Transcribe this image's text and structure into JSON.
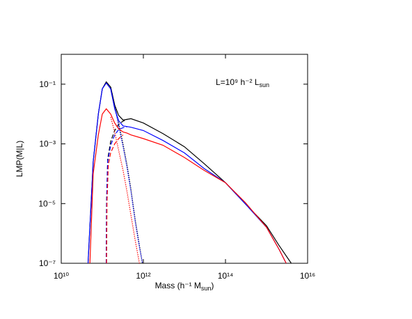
{
  "chart_data": {
    "type": "line",
    "x_label": [
      "Mass (h⁻¹ M",
      "sun",
      ")"
    ],
    "y_label": "LMP(M|L)",
    "annotation": [
      "L=10⁹ h⁻² L",
      "sun"
    ],
    "xscale": "log",
    "yscale": "log",
    "xlim": [
      10000000000.0,
      1e+16
    ],
    "ylim": [
      1e-07,
      1
    ],
    "xticks": [
      {
        "value": 10000000000.0,
        "label": "10¹⁰"
      },
      {
        "value": 1000000000000.0,
        "label": "10¹²"
      },
      {
        "value": 100000000000000.0,
        "label": "10¹⁴"
      },
      {
        "value": 1e+16,
        "label": "10¹⁶"
      }
    ],
    "yticks": [
      {
        "value": 0.1,
        "label": "10⁻¹"
      },
      {
        "value": 0.001,
        "label": "10⁻³"
      },
      {
        "value": 1e-05,
        "label": "10⁻⁵"
      },
      {
        "value": 1e-07,
        "label": "10⁻⁷"
      }
    ],
    "series": [
      {
        "color": "#000000",
        "dash": "solid",
        "x": [
          45000000000.0,
          60000000000.0,
          80000000000.0,
          100000000000.0,
          125000000000.0,
          160000000000.0,
          200000000000.0,
          250000000000.0,
          320000000000.0,
          400000000000.0,
          500000000000.0,
          1000000000000.0,
          3000000000000.0,
          10000000000000.0,
          30000000000000.0,
          100000000000000.0,
          300000000000000.0,
          1000000000000000.0,
          2000000000000000.0,
          4000000000000000.0
        ],
        "values": [
          1e-07,
          0.00025,
          0.01,
          0.07,
          0.12,
          0.08,
          0.02,
          0.009,
          0.0063,
          0.0066,
          0.007,
          0.005,
          0.0022,
          0.0008,
          0.00022,
          5e-05,
          1e-05,
          1.8e-06,
          4e-07,
          1e-07
        ]
      },
      {
        "color": "#000000",
        "dash": "dotted",
        "x": [
          160000000000.0,
          200000000000.0,
          250000000000.0,
          320000000000.0,
          400000000000.0,
          500000000000.0,
          630000000000.0,
          800000000000.0,
          950000000000.0
        ],
        "values": [
          0.08,
          0.02,
          0.005,
          0.001,
          0.0002,
          3e-05,
          3e-06,
          4e-07,
          1e-07
        ]
      },
      {
        "color": "#000000",
        "dash": "dashed",
        "x": [
          125000000000.0,
          127000000000.0,
          135000000000.0,
          160000000000.0,
          200000000000.0,
          250000000000.0,
          320000000000.0,
          400000000000.0
        ],
        "values": [
          1e-07,
          1e-05,
          0.0003,
          0.0012,
          0.0028,
          0.0045,
          0.0058,
          0.0065
        ]
      },
      {
        "color": "#0000ff",
        "dash": "solid",
        "x": [
          45000000000.0,
          60000000000.0,
          80000000000.0,
          100000000000.0,
          125000000000.0,
          160000000000.0,
          200000000000.0,
          250000000000.0,
          320000000000.0,
          400000000000.0,
          500000000000.0,
          1000000000000.0,
          3000000000000.0,
          10000000000000.0,
          30000000000000.0,
          100000000000000.0,
          300000000000000.0,
          1000000000000000.0,
          2000000000000000.0,
          3000000000000000.0
        ],
        "values": [
          1e-07,
          0.00025,
          0.01,
          0.07,
          0.11,
          0.07,
          0.015,
          0.006,
          0.004,
          0.0038,
          0.0036,
          0.0028,
          0.0013,
          0.0005,
          0.00015,
          5e-05,
          1e-05,
          1.6e-06,
          3e-07,
          1e-07
        ]
      },
      {
        "color": "#0000ff",
        "dash": "dotted",
        "x": [
          160000000000.0,
          200000000000.0,
          250000000000.0,
          320000000000.0,
          400000000000.0,
          500000000000.0,
          630000000000.0,
          800000000000.0,
          950000000000.0
        ],
        "values": [
          0.07,
          0.017,
          0.004,
          0.0008,
          0.00016,
          2.5e-05,
          2.5e-06,
          3.5e-07,
          1e-07
        ]
      },
      {
        "color": "#0000ff",
        "dash": "dashed",
        "x": [
          125000000000.0,
          127000000000.0,
          135000000000.0,
          160000000000.0,
          200000000000.0,
          250000000000.0,
          320000000000.0,
          400000000000.0
        ],
        "values": [
          1e-07,
          1e-05,
          0.00025,
          0.0009,
          0.002,
          0.003,
          0.0035,
          0.0037
        ]
      },
      {
        "color": "#ff0000",
        "dash": "solid",
        "x": [
          50000000000.0,
          60000000000.0,
          80000000000.0,
          100000000000.0,
          125000000000.0,
          160000000000.0,
          200000000000.0,
          250000000000.0,
          320000000000.0,
          400000000000.0,
          500000000000.0,
          1000000000000.0,
          3000000000000.0,
          10000000000000.0,
          30000000000000.0,
          100000000000000.0,
          300000000000000.0,
          1000000000000000.0,
          2000000000000000.0,
          3000000000000000.0
        ],
        "values": [
          1e-07,
          0.0001,
          0.002,
          0.01,
          0.015,
          0.01,
          0.005,
          0.0032,
          0.0025,
          0.0023,
          0.002,
          0.0015,
          0.0009,
          0.00035,
          0.00013,
          5e-05,
          1.1e-05,
          1.6e-06,
          3e-07,
          1e-07
        ]
      },
      {
        "color": "#ff0000",
        "dash": "dotted",
        "x": [
          160000000000.0,
          200000000000.0,
          250000000000.0,
          320000000000.0,
          400000000000.0,
          500000000000.0,
          630000000000.0,
          800000000000.0
        ],
        "values": [
          0.008,
          0.0025,
          0.0006,
          0.00013,
          2.5e-05,
          4e-06,
          6e-07,
          1e-07
        ]
      },
      {
        "color": "#ff0000",
        "dash": "dashed",
        "x": [
          127000000000.0,
          130000000000.0,
          140000000000.0,
          160000000000.0,
          200000000000.0,
          250000000000.0,
          320000000000.0
        ],
        "values": [
          1e-07,
          1e-05,
          0.0002,
          0.0005,
          0.001,
          0.0015,
          0.002
        ]
      }
    ]
  }
}
